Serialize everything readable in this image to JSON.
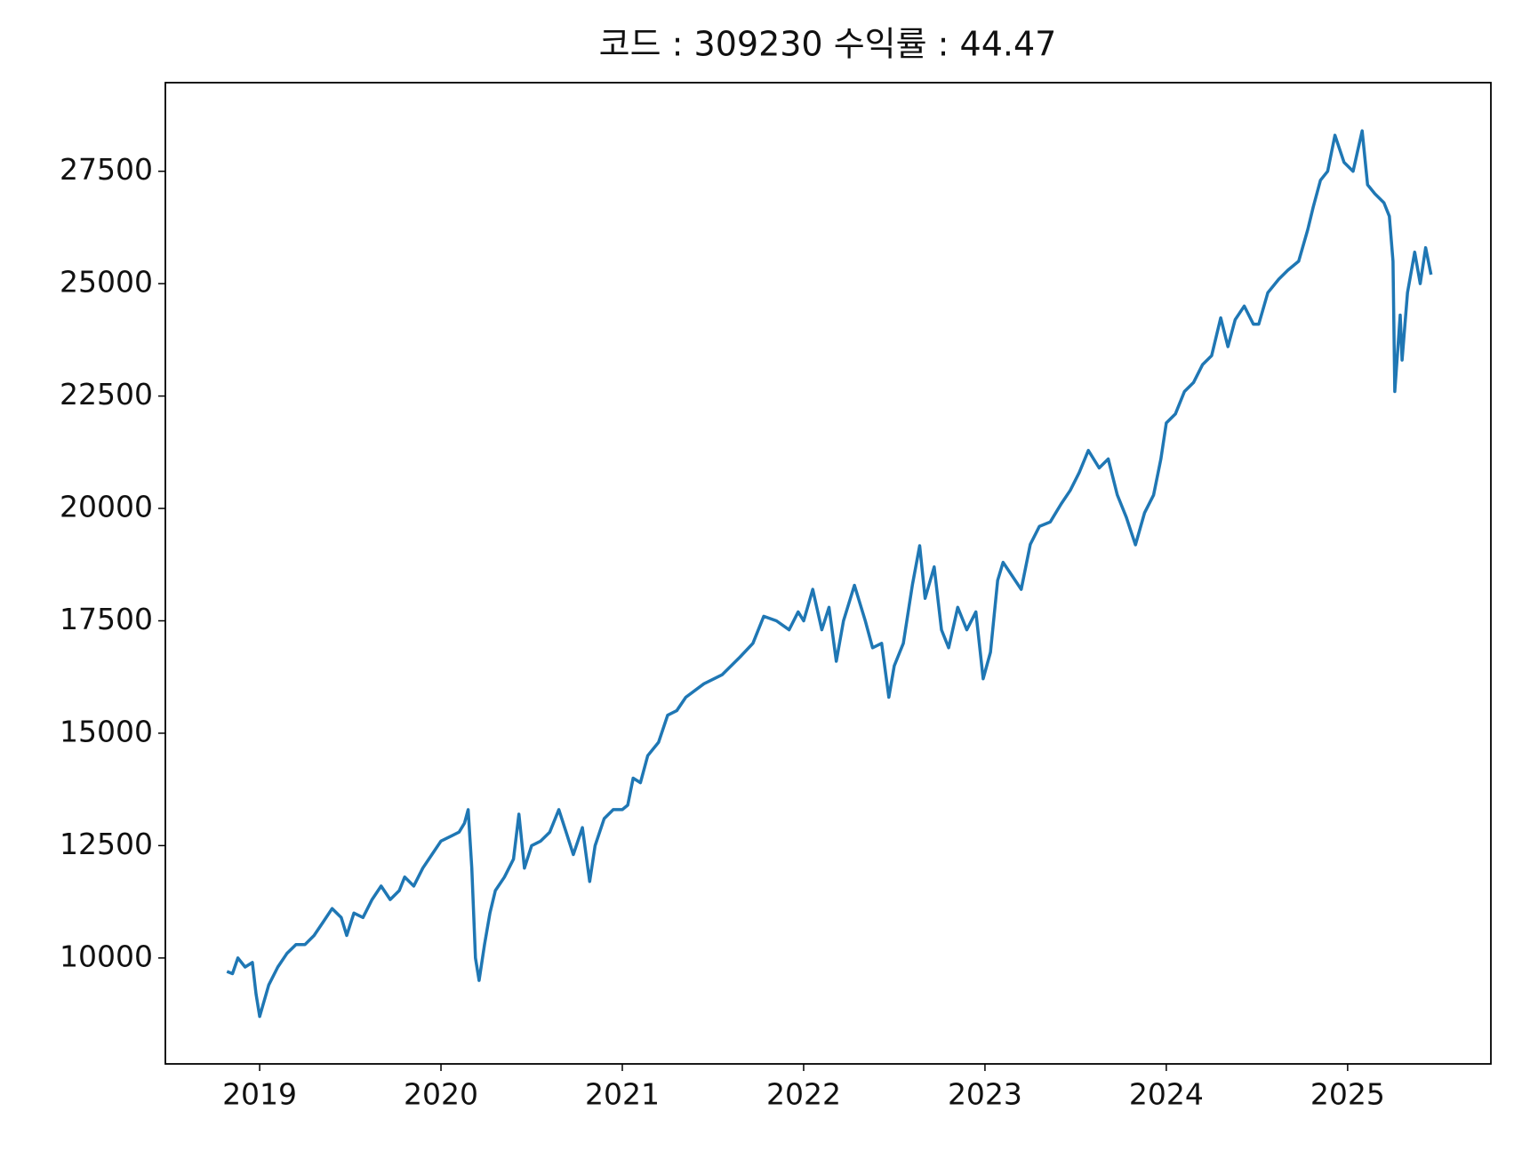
{
  "chart_data": {
    "type": "line",
    "title": "코드 : 309230 수익률 : 44.47",
    "x": [
      2018.82,
      2018.85,
      2018.88,
      2018.92,
      2018.96,
      2018.98,
      2019.0,
      2019.05,
      2019.1,
      2019.15,
      2019.2,
      2019.25,
      2019.3,
      2019.35,
      2019.4,
      2019.45,
      2019.48,
      2019.52,
      2019.57,
      2019.62,
      2019.67,
      2019.72,
      2019.77,
      2019.8,
      2019.85,
      2019.9,
      2019.95,
      2020.0,
      2020.05,
      2020.1,
      2020.13,
      2020.15,
      2020.17,
      2020.19,
      2020.21,
      2020.24,
      2020.27,
      2020.3,
      2020.35,
      2020.4,
      2020.43,
      2020.46,
      2020.5,
      2020.55,
      2020.6,
      2020.65,
      2020.69,
      2020.73,
      2020.78,
      2020.82,
      2020.85,
      2020.9,
      2020.95,
      2021.0,
      2021.03,
      2021.06,
      2021.1,
      2021.14,
      2021.2,
      2021.25,
      2021.3,
      2021.35,
      2021.45,
      2021.55,
      2021.65,
      2021.72,
      2021.78,
      2021.85,
      2021.92,
      2021.97,
      2022.0,
      2022.05,
      2022.1,
      2022.14,
      2022.18,
      2022.22,
      2022.28,
      2022.34,
      2022.38,
      2022.43,
      2022.47,
      2022.5,
      2022.55,
      2022.6,
      2022.64,
      2022.67,
      2022.72,
      2022.76,
      2022.8,
      2022.85,
      2022.9,
      2022.95,
      2022.99,
      2023.03,
      2023.07,
      2023.1,
      2023.15,
      2023.2,
      2023.25,
      2023.3,
      2023.36,
      2023.42,
      2023.47,
      2023.52,
      2023.57,
      2023.63,
      2023.68,
      2023.73,
      2023.78,
      2023.83,
      2023.88,
      2023.93,
      2023.97,
      2024.0,
      2024.05,
      2024.1,
      2024.15,
      2024.2,
      2024.25,
      2024.3,
      2024.34,
      2024.38,
      2024.43,
      2024.48,
      2024.51,
      2024.56,
      2024.62,
      2024.67,
      2024.73,
      2024.78,
      2024.81,
      2024.85,
      2024.89,
      2024.93,
      2024.98,
      2025.03,
      2025.08,
      2025.11,
      2025.15,
      2025.2,
      2025.23,
      2025.25,
      2025.26,
      2025.29,
      2025.3,
      2025.33,
      2025.37,
      2025.4,
      2025.43,
      2025.46
    ],
    "series": [
      {
        "name": "309230",
        "color": "#1f77b4",
        "values": [
          9700,
          9650,
          10000,
          9800,
          9900,
          9200,
          8700,
          9400,
          9800,
          10100,
          10300,
          10300,
          10500,
          10800,
          11100,
          10900,
          10500,
          11000,
          10900,
          11300,
          11600,
          11300,
          11500,
          11800,
          11600,
          12000,
          12300,
          12600,
          12700,
          12800,
          13000,
          13300,
          12000,
          10000,
          9500,
          10300,
          11000,
          11500,
          11800,
          12200,
          13200,
          12000,
          12500,
          12600,
          12800,
          13300,
          12800,
          12300,
          12900,
          11700,
          12500,
          13100,
          13300,
          13300,
          13400,
          14000,
          13900,
          14500,
          14800,
          15400,
          15500,
          15800,
          16100,
          16300,
          16700,
          17000,
          17600,
          17500,
          17300,
          17700,
          17500,
          18200,
          17300,
          17800,
          16600,
          17500,
          18290,
          17500,
          16900,
          17000,
          15800,
          16500,
          17000,
          18300,
          19170,
          18000,
          18700,
          17300,
          16900,
          17800,
          17300,
          17700,
          16210,
          16800,
          18400,
          18800,
          18500,
          18200,
          19200,
          19600,
          19700,
          20100,
          20400,
          20800,
          21290,
          20900,
          21100,
          20300,
          19800,
          19190,
          19900,
          20300,
          21100,
          21900,
          22100,
          22600,
          22800,
          23200,
          23400,
          24240,
          23600,
          24200,
          24500,
          24100,
          24100,
          24800,
          25100,
          25300,
          25500,
          26200,
          26700,
          27300,
          27500,
          28300,
          27700,
          27500,
          28400,
          27200,
          27000,
          26800,
          26500,
          25500,
          22600,
          24300,
          23300,
          24800,
          25700,
          25000,
          25800,
          25200
        ]
      }
    ],
    "xlim": [
      2018.48,
      2025.79
    ],
    "xticks": [
      2019,
      2020,
      2021,
      2022,
      2023,
      2024,
      2025
    ],
    "ylim": [
      7644,
      29471
    ],
    "yticks": [
      10000,
      12500,
      15000,
      17500,
      20000,
      22500,
      25000,
      27500
    ]
  }
}
